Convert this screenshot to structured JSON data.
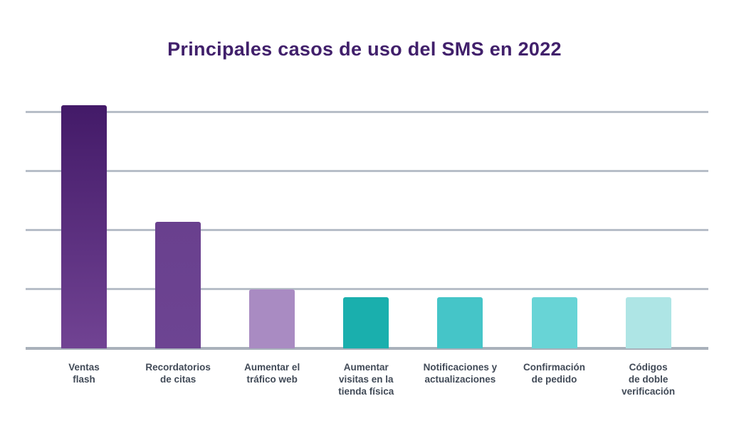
{
  "header": {
    "title": "Principales casos de uso del SMS en 2022",
    "title_color": "#41206b"
  },
  "chart_data": {
    "type": "bar",
    "title": "Principales casos de uso del SMS en 2022",
    "xlabel": "",
    "ylabel": "",
    "legend": "none",
    "grid": "horizontal gridlines, no tick labels",
    "ylim": [
      0,
      4.6
    ],
    "gridline_values": [
      1,
      2,
      3,
      4
    ],
    "note": "Y axis has no visible tick labels; values estimated in gridline units read from the plot",
    "categories": [
      "Ventas flash",
      "Recordatorios de citas",
      "Aumentar el tráfico web",
      "Aumentar visitas en la tienda física",
      "Notificaciones y actualizaciones",
      "Confirmación de pedido",
      "Códigos de doble verificación"
    ],
    "values": [
      4.11,
      2.14,
      1.0,
      0.87,
      0.87,
      0.87,
      0.87
    ],
    "label_lines": [
      [
        "Ventas",
        "flash"
      ],
      [
        "Recordatorios",
        "de citas"
      ],
      [
        "Aumentar el",
        "tráfico web"
      ],
      [
        "Aumentar",
        "visitas en la",
        "tienda física"
      ],
      [
        "Notificaciones y",
        "actualizaciones"
      ],
      [
        "Confirmación",
        "de pedido"
      ],
      [
        "Códigos",
        "de doble",
        "verificación"
      ]
    ],
    "bar_colors": [
      {
        "top": "#431a68",
        "bottom": "#714393"
      },
      {
        "top": "#69408e",
        "bottom": "#6d4492"
      },
      {
        "top": "#a98bc2",
        "bottom": "#a98bc2"
      },
      {
        "top": "#1aafad",
        "bottom": "#1aafad"
      },
      {
        "top": "#45c5c8",
        "bottom": "#45c5c8"
      },
      {
        "top": "#68d4d6",
        "bottom": "#68d4d6"
      },
      {
        "top": "#aee5e5",
        "bottom": "#aee5e5"
      }
    ],
    "colors": {
      "gridline": "#b7bec8",
      "baseline": "#a9b1bb",
      "label_text": "#414a57"
    }
  }
}
